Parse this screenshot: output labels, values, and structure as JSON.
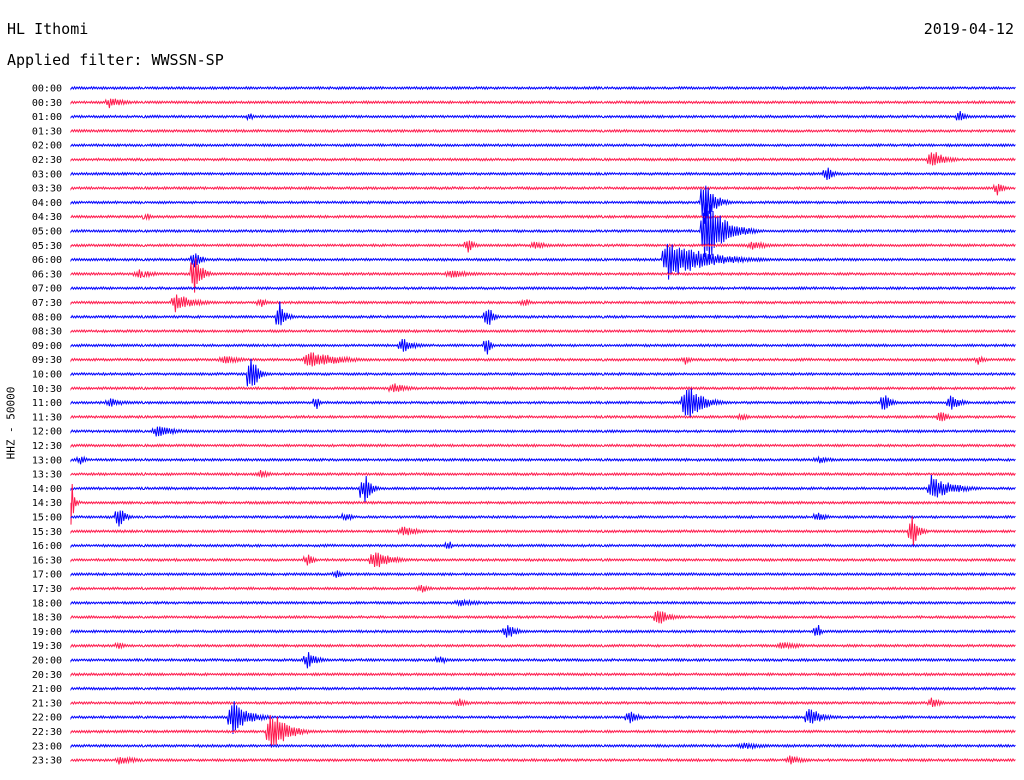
{
  "header": {
    "station": "HL Ithomi",
    "date": "2019-04-12",
    "filter_label": "Applied filter: WWSSN-SP"
  },
  "chart_data": {
    "type": "line",
    "title": "HL Ithomi",
    "subtitle": "Applied filter: WWSSN-SP",
    "ylabel": "HHZ - 50000",
    "xlabel": "",
    "trace_colors": [
      "#0000ff",
      "#ff1a4d"
    ],
    "rows": [
      {
        "time": "00:00",
        "events": []
      },
      {
        "time": "00:30",
        "events": [
          {
            "pos": 0.04,
            "amp": 6,
            "dur": 0.05
          }
        ]
      },
      {
        "time": "01:00",
        "events": [
          {
            "pos": 0.19,
            "amp": 6,
            "dur": 0.01
          },
          {
            "pos": 0.94,
            "amp": 8,
            "dur": 0.02
          }
        ]
      },
      {
        "time": "01:30",
        "events": []
      },
      {
        "time": "02:00",
        "events": []
      },
      {
        "time": "02:30",
        "events": [
          {
            "pos": 0.91,
            "amp": 12,
            "dur": 0.04
          }
        ]
      },
      {
        "time": "03:00",
        "events": [
          {
            "pos": 0.8,
            "amp": 10,
            "dur": 0.02
          }
        ]
      },
      {
        "time": "03:30",
        "events": [
          {
            "pos": 0.98,
            "amp": 8,
            "dur": 0.02
          }
        ]
      },
      {
        "time": "04:00",
        "events": [
          {
            "pos": 0.67,
            "amp": 30,
            "dur": 0.03
          }
        ]
      },
      {
        "time": "04:30",
        "events": [
          {
            "pos": 0.08,
            "amp": 6,
            "dur": 0.01
          }
        ]
      },
      {
        "time": "05:00",
        "events": [
          {
            "pos": 0.67,
            "amp": 38,
            "dur": 0.06
          }
        ]
      },
      {
        "time": "05:30",
        "events": [
          {
            "pos": 0.42,
            "amp": 8,
            "dur": 0.02
          },
          {
            "pos": 0.49,
            "amp": 5,
            "dur": 0.04
          },
          {
            "pos": 0.72,
            "amp": 5,
            "dur": 0.06
          }
        ]
      },
      {
        "time": "06:00",
        "events": [
          {
            "pos": 0.13,
            "amp": 14,
            "dur": 0.02
          },
          {
            "pos": 0.63,
            "amp": 22,
            "dur": 0.12
          }
        ]
      },
      {
        "time": "06:30",
        "events": [
          {
            "pos": 0.13,
            "amp": 30,
            "dur": 0.02
          },
          {
            "pos": 0.07,
            "amp": 5,
            "dur": 0.06
          },
          {
            "pos": 0.4,
            "amp": 5,
            "dur": 0.07
          }
        ]
      },
      {
        "time": "07:00",
        "events": []
      },
      {
        "time": "07:30",
        "events": [
          {
            "pos": 0.11,
            "amp": 10,
            "dur": 0.06
          },
          {
            "pos": 0.2,
            "amp": 6,
            "dur": 0.02
          },
          {
            "pos": 0.48,
            "amp": 5,
            "dur": 0.02
          }
        ]
      },
      {
        "time": "08:00",
        "events": [
          {
            "pos": 0.22,
            "amp": 18,
            "dur": 0.02
          },
          {
            "pos": 0.44,
            "amp": 14,
            "dur": 0.02
          }
        ]
      },
      {
        "time": "08:30",
        "events": []
      },
      {
        "time": "09:00",
        "events": [
          {
            "pos": 0.35,
            "amp": 8,
            "dur": 0.04
          },
          {
            "pos": 0.44,
            "amp": 14,
            "dur": 0.01
          }
        ]
      },
      {
        "time": "09:30",
        "events": [
          {
            "pos": 0.16,
            "amp": 5,
            "dur": 0.06
          },
          {
            "pos": 0.25,
            "amp": 10,
            "dur": 0.1
          },
          {
            "pos": 0.65,
            "amp": 5,
            "dur": 0.02
          },
          {
            "pos": 0.96,
            "amp": 5,
            "dur": 0.02
          }
        ]
      },
      {
        "time": "10:00",
        "events": [
          {
            "pos": 0.19,
            "amp": 26,
            "dur": 0.02
          }
        ]
      },
      {
        "time": "10:30",
        "events": [
          {
            "pos": 0.34,
            "amp": 6,
            "dur": 0.05
          }
        ]
      },
      {
        "time": "11:00",
        "events": [
          {
            "pos": 0.65,
            "amp": 22,
            "dur": 0.05
          },
          {
            "pos": 0.86,
            "amp": 14,
            "dur": 0.02
          },
          {
            "pos": 0.93,
            "amp": 10,
            "dur": 0.03
          },
          {
            "pos": 0.26,
            "amp": 8,
            "dur": 0.01
          },
          {
            "pos": 0.04,
            "amp": 5,
            "dur": 0.05
          }
        ]
      },
      {
        "time": "11:30",
        "events": [
          {
            "pos": 0.71,
            "amp": 5,
            "dur": 0.02
          },
          {
            "pos": 0.92,
            "amp": 8,
            "dur": 0.02
          }
        ]
      },
      {
        "time": "12:00",
        "events": [
          {
            "pos": 0.09,
            "amp": 6,
            "dur": 0.07
          }
        ]
      },
      {
        "time": "12:30",
        "events": []
      },
      {
        "time": "13:00",
        "events": [
          {
            "pos": 0.01,
            "amp": 5,
            "dur": 0.02
          },
          {
            "pos": 0.79,
            "amp": 4,
            "dur": 0.05
          }
        ]
      },
      {
        "time": "13:30",
        "events": [
          {
            "pos": 0.2,
            "amp": 5,
            "dur": 0.03
          }
        ]
      },
      {
        "time": "14:00",
        "events": [
          {
            "pos": 0.31,
            "amp": 20,
            "dur": 0.02
          },
          {
            "pos": 0.91,
            "amp": 14,
            "dur": 0.07
          }
        ]
      },
      {
        "time": "14:30",
        "events": [
          {
            "pos": 0.0,
            "amp": 30,
            "dur": 0.01
          }
        ]
      },
      {
        "time": "15:00",
        "events": [
          {
            "pos": 0.05,
            "amp": 14,
            "dur": 0.02
          },
          {
            "pos": 0.29,
            "amp": 6,
            "dur": 0.02
          },
          {
            "pos": 0.79,
            "amp": 6,
            "dur": 0.03
          }
        ]
      },
      {
        "time": "15:30",
        "events": [
          {
            "pos": 0.35,
            "amp": 6,
            "dur": 0.05
          },
          {
            "pos": 0.89,
            "amp": 20,
            "dur": 0.02
          }
        ]
      },
      {
        "time": "16:00",
        "events": [
          {
            "pos": 0.4,
            "amp": 6,
            "dur": 0.01
          }
        ]
      },
      {
        "time": "16:30",
        "events": [
          {
            "pos": 0.25,
            "amp": 8,
            "dur": 0.02
          },
          {
            "pos": 0.32,
            "amp": 12,
            "dur": 0.05
          }
        ]
      },
      {
        "time": "17:00",
        "events": [
          {
            "pos": 0.28,
            "amp": 5,
            "dur": 0.02
          }
        ]
      },
      {
        "time": "17:30",
        "events": [
          {
            "pos": 0.37,
            "amp": 5,
            "dur": 0.03
          }
        ]
      },
      {
        "time": "18:00",
        "events": [
          {
            "pos": 0.41,
            "amp": 4,
            "dur": 0.08
          }
        ]
      },
      {
        "time": "18:30",
        "events": [
          {
            "pos": 0.62,
            "amp": 10,
            "dur": 0.04
          }
        ]
      },
      {
        "time": "19:00",
        "events": [
          {
            "pos": 0.46,
            "amp": 10,
            "dur": 0.03
          },
          {
            "pos": 0.79,
            "amp": 10,
            "dur": 0.01
          }
        ]
      },
      {
        "time": "19:30",
        "events": [
          {
            "pos": 0.05,
            "amp": 5,
            "dur": 0.02
          },
          {
            "pos": 0.75,
            "amp": 5,
            "dur": 0.06
          }
        ]
      },
      {
        "time": "20:00",
        "events": [
          {
            "pos": 0.25,
            "amp": 10,
            "dur": 0.03
          },
          {
            "pos": 0.39,
            "amp": 6,
            "dur": 0.02
          }
        ]
      },
      {
        "time": "20:30",
        "events": []
      },
      {
        "time": "21:00",
        "events": []
      },
      {
        "time": "21:30",
        "events": [
          {
            "pos": 0.41,
            "amp": 5,
            "dur": 0.03
          },
          {
            "pos": 0.91,
            "amp": 6,
            "dur": 0.03
          }
        ]
      },
      {
        "time": "22:00",
        "events": [
          {
            "pos": 0.17,
            "amp": 20,
            "dur": 0.05
          },
          {
            "pos": 0.59,
            "amp": 8,
            "dur": 0.03
          },
          {
            "pos": 0.78,
            "amp": 12,
            "dur": 0.04
          }
        ]
      },
      {
        "time": "22:30",
        "events": [
          {
            "pos": 0.21,
            "amp": 26,
            "dur": 0.05
          }
        ]
      },
      {
        "time": "23:00",
        "events": [
          {
            "pos": 0.71,
            "amp": 4,
            "dur": 0.08
          }
        ]
      },
      {
        "time": "23:30",
        "events": [
          {
            "pos": 0.05,
            "amp": 5,
            "dur": 0.06
          },
          {
            "pos": 0.76,
            "amp": 5,
            "dur": 0.05
          }
        ]
      }
    ]
  }
}
